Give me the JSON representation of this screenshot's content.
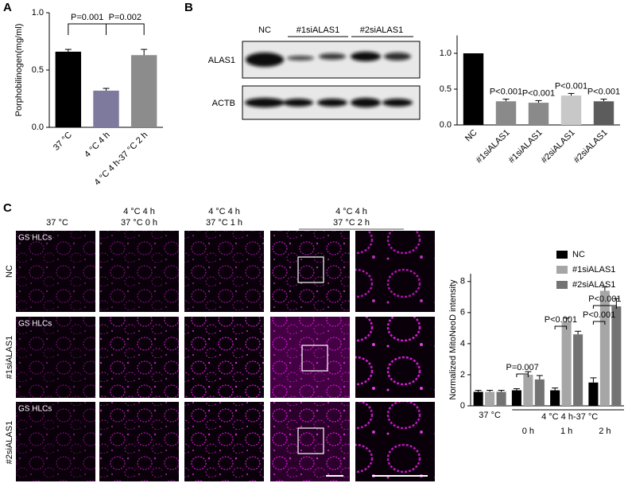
{
  "panel_labels": [
    "A",
    "B",
    "C"
  ],
  "blot": {
    "lanes": [
      "NC",
      "#1siALAS1",
      "#2siALAS1"
    ],
    "rows": [
      "ALAS1",
      "ACTB"
    ]
  },
  "micrographs": {
    "columns": [
      [
        "37 °C"
      ],
      [
        "4 °C 4 h",
        "37 °C 0 h"
      ],
      [
        "4 °C 4 h",
        "37 °C 1 h"
      ],
      [
        "4 °C 4 h",
        "37 °C 2 h"
      ]
    ],
    "rows": [
      "NC",
      "#1siALAS1",
      "#2siALAS1"
    ],
    "cell_label": "GS HLCs"
  },
  "chart_data": [
    {
      "type": "bar",
      "ylabel": "Porphobilinogen(mg/ml)",
      "categories": [
        "37 °C",
        "4 °C 4 h",
        "4 °C 4 h-37 °C 2 h"
      ],
      "values": [
        0.66,
        0.32,
        0.63
      ],
      "errors": [
        0.02,
        0.02,
        0.05
      ],
      "colors": [
        "#000000",
        "#7d7a9e",
        "#8c8c8c"
      ],
      "ylim": [
        0,
        1.0
      ],
      "yticks": [
        {
          "value": 0,
          "label": "0.0"
        },
        {
          "value": 0.5,
          "label": "0.5"
        },
        {
          "value": 1,
          "label": "1.0"
        }
      ],
      "annotations": [
        "P=0.001",
        "P=0.002"
      ]
    },
    {
      "type": "bar",
      "categories": [
        "NC",
        "#1siALAS1",
        "#1siALAS1",
        "#2siALAS1",
        "#2siALAS1"
      ],
      "values": [
        1.0,
        0.33,
        0.31,
        0.41,
        0.33
      ],
      "errors": [
        null,
        0.03,
        0.03,
        0.03,
        0.03
      ],
      "colors": [
        "#000000",
        "#8a8a8a",
        "#8a8a8a",
        "#c8c8c8",
        "#5c5c5c"
      ],
      "ylim": [
        0,
        1.25
      ],
      "yticks": [
        {
          "value": 0,
          "label": "0.0"
        },
        {
          "value": 0.5,
          "label": "0.5"
        },
        {
          "value": 1,
          "label": "1.0"
        }
      ],
      "annotations": [
        "P<0.001",
        "P<0.001",
        "P<0.001",
        "P<0.001"
      ]
    },
    {
      "type": "bar",
      "ylabel": "Normalized MitoNeoD intensity",
      "categories": [
        "37 °C",
        "0 h",
        "1 h",
        "2 h"
      ],
      "group_label": "4 °C 4 h-37 °C",
      "series": [
        {
          "name": "NC",
          "color": "#000000",
          "values": [
            0.9,
            1.0,
            1.0,
            1.5
          ],
          "errors": [
            0.1,
            0.1,
            0.15,
            0.3
          ]
        },
        {
          "name": "#1siALAS1",
          "color": "#a6a6a6",
          "values": [
            0.9,
            2.0,
            5.4,
            7.4
          ],
          "errors": [
            0.1,
            0.2,
            0.25,
            0.25
          ]
        },
        {
          "name": "#2siALAS1",
          "color": "#737373",
          "values": [
            0.9,
            1.7,
            4.6,
            6.4
          ],
          "errors": [
            0.1,
            0.25,
            0.2,
            0.5
          ]
        }
      ],
      "ylim": [
        0,
        8.5
      ],
      "yticks": [
        0,
        2,
        4,
        6,
        8
      ],
      "annotations": [
        "P=0.007",
        "P<0.001",
        "P<0.001",
        "P<0.001"
      ]
    }
  ]
}
